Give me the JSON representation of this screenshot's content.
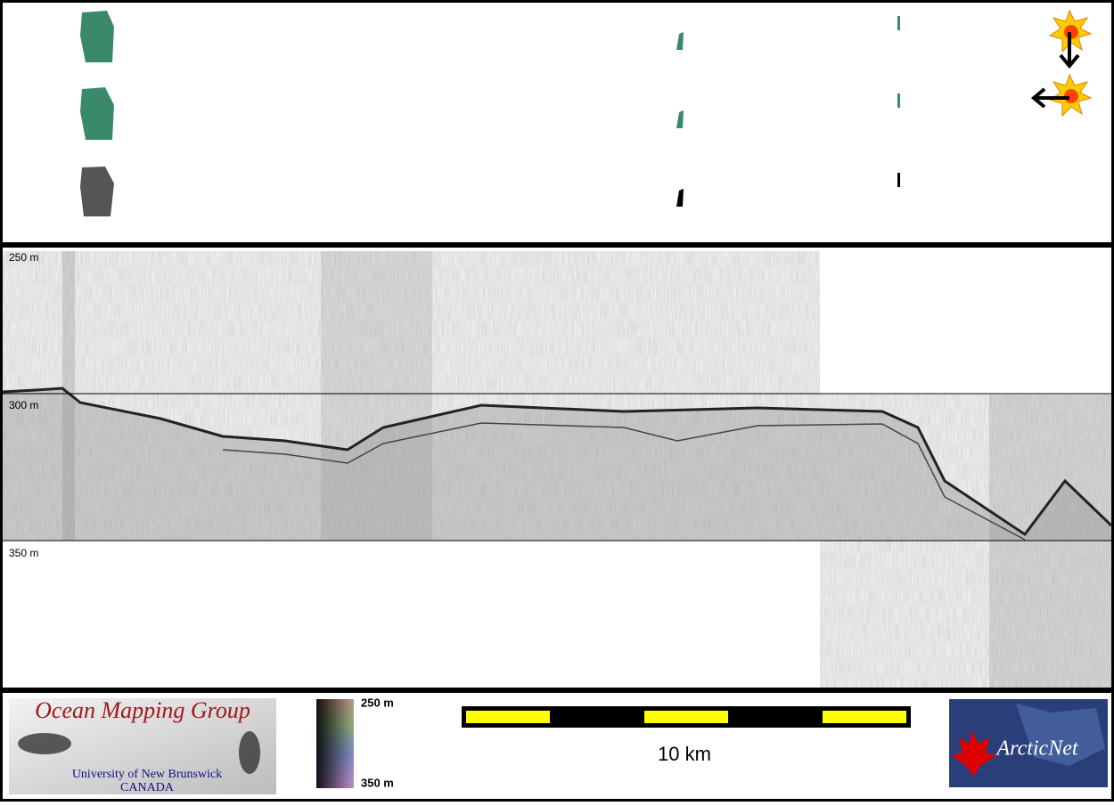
{
  "profile": {
    "depth_labels": [
      "250 m",
      "300 m",
      "350 m"
    ]
  },
  "legend": {
    "top": "250 m",
    "bottom": "350 m"
  },
  "scale_bar": {
    "label": "10 km"
  },
  "logos": {
    "omg": {
      "title": "Ocean Mapping Group",
      "subtitle": "University of New Brunswick",
      "country": "CANADA"
    },
    "arcticnet": "ArcticNet"
  }
}
